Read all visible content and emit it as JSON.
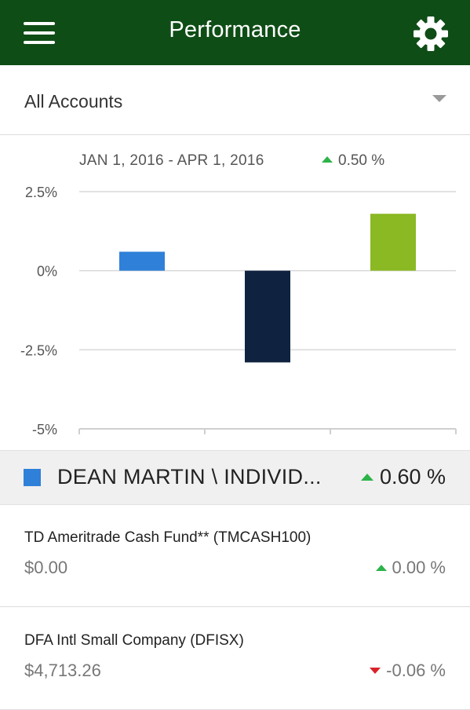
{
  "header": {
    "title": "Performance",
    "menu_icon": "hamburger-menu-icon",
    "settings_icon": "gear-icon",
    "background": "#0f4d16"
  },
  "account_selector": {
    "selected": "All Accounts"
  },
  "summary": {
    "date_range": "JAN 1, 2016 - APR 1, 2016",
    "change": "0.50 %",
    "direction": "up"
  },
  "chart_data": {
    "type": "bar",
    "values": [
      0.6,
      -2.9,
      1.8
    ],
    "colors": [
      "#2f80d8",
      "#0f2340",
      "#8ab923"
    ],
    "yticks": [
      "2.5%",
      "0%",
      "-2.5%",
      "-5%"
    ],
    "ytick_values": [
      2.5,
      0,
      -2.5,
      -5
    ],
    "ylim": [
      -5,
      2.5
    ],
    "grid": true
  },
  "account": {
    "name": "DEAN MARTIN \\ INDIVID...",
    "change": "0.60 %",
    "direction": "up",
    "color": "#2f80d8"
  },
  "holdings": [
    {
      "name": "TD Ameritrade Cash Fund** (TMCASH100)",
      "value": "$0.00",
      "change": "0.00 %",
      "direction": "up"
    },
    {
      "name": "DFA Intl Small Company (DFISX)",
      "value": "$4,713.26",
      "change": "-0.06 %",
      "direction": "down"
    }
  ]
}
